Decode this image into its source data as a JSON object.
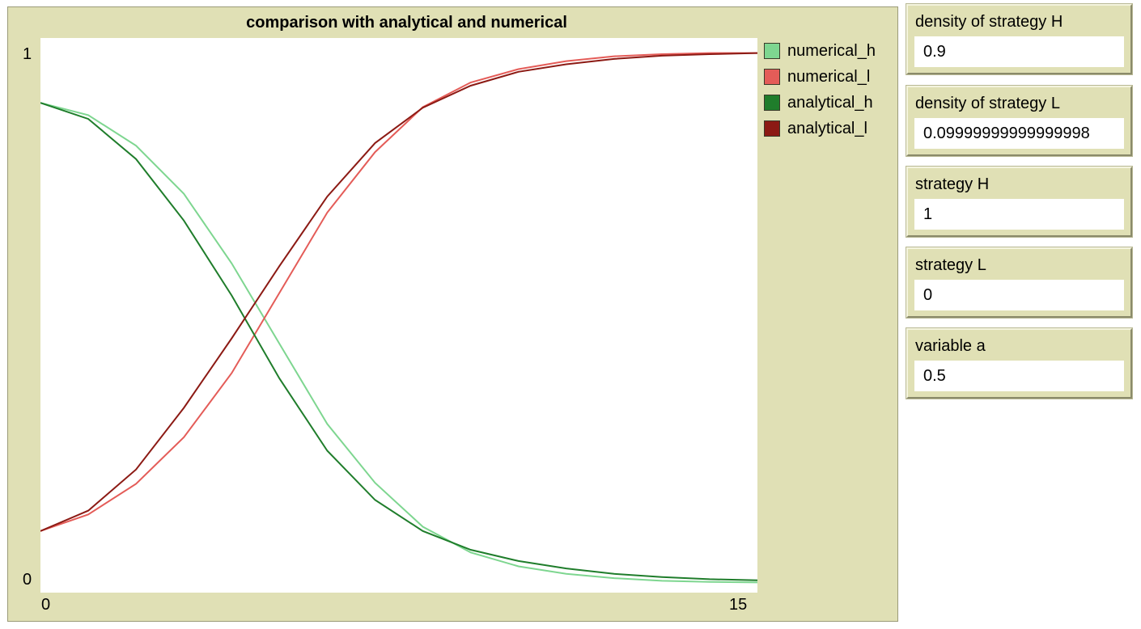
{
  "plot": {
    "title": "comparison with analytical and numerical",
    "y_min_label": "0",
    "y_max_label": "1",
    "x_min_label": "0",
    "x_max_label": "15"
  },
  "legend": [
    {
      "label": "numerical_h",
      "color": "#7ed690"
    },
    {
      "label": "numerical_l",
      "color": "#e45c58"
    },
    {
      "label": "analytical_h",
      "color": "#1f7d2b"
    },
    {
      "label": "analytical_l",
      "color": "#8c1a14"
    }
  ],
  "monitors": [
    {
      "label": "density of strategy H",
      "value": "0.9"
    },
    {
      "label": "density of strategy L",
      "value": "0.09999999999999998"
    },
    {
      "label": "strategy H",
      "value": "1"
    },
    {
      "label": "strategy L",
      "value": "0"
    },
    {
      "label": "variable a",
      "value": "0.5"
    }
  ],
  "chart_data": {
    "type": "line",
    "title": "comparison with analytical and numerical",
    "xlim": [
      0,
      15
    ],
    "ylim": [
      0,
      1
    ],
    "x": [
      0,
      1,
      2,
      3,
      4,
      5,
      6,
      7,
      8,
      9,
      10,
      11,
      12,
      13,
      14,
      15
    ],
    "series": [
      {
        "name": "numerical_h",
        "color": "#7ed690",
        "values": [
          0.9,
          0.877,
          0.82,
          0.73,
          0.6,
          0.45,
          0.3,
          0.19,
          0.108,
          0.06,
          0.034,
          0.02,
          0.012,
          0.007,
          0.005,
          0.004
        ]
      },
      {
        "name": "numerical_l",
        "color": "#e45c58",
        "values": [
          0.1,
          0.131,
          0.188,
          0.275,
          0.395,
          0.545,
          0.695,
          0.808,
          0.892,
          0.938,
          0.963,
          0.978,
          0.987,
          0.991,
          0.993,
          0.993
        ]
      },
      {
        "name": "analytical_h",
        "color": "#1f7d2b",
        "values": [
          0.9,
          0.87,
          0.795,
          0.68,
          0.54,
          0.385,
          0.25,
          0.158,
          0.1,
          0.065,
          0.044,
          0.03,
          0.02,
          0.014,
          0.01,
          0.008
        ]
      },
      {
        "name": "analytical_l",
        "color": "#8c1a14",
        "values": [
          0.1,
          0.138,
          0.215,
          0.33,
          0.46,
          0.595,
          0.725,
          0.825,
          0.891,
          0.932,
          0.958,
          0.972,
          0.982,
          0.988,
          0.991,
          0.993
        ]
      }
    ]
  }
}
